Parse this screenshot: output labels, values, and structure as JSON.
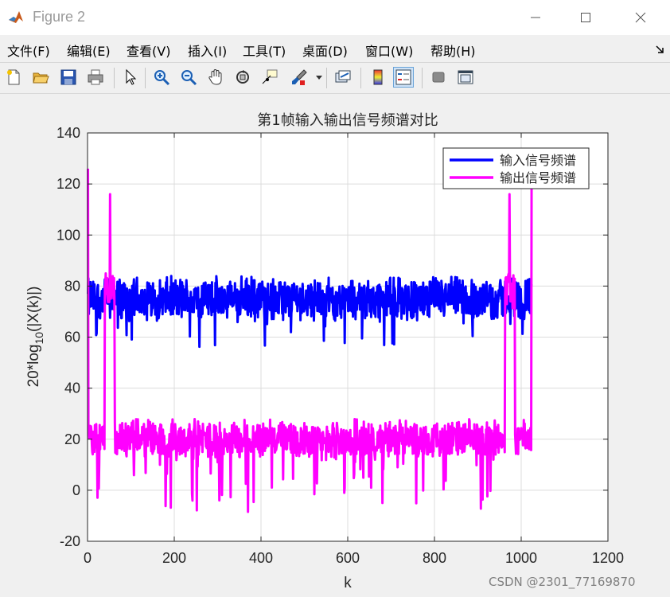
{
  "window": {
    "title": "Figure 2",
    "controls": {
      "minimize": "minimize",
      "maximize": "maximize",
      "close": "close"
    }
  },
  "menu": {
    "items": [
      "文件(F)",
      "编辑(E)",
      "查看(V)",
      "插入(I)",
      "工具(T)",
      "桌面(D)",
      "窗口(W)",
      "帮助(H)"
    ],
    "overflow_icon": "dock-arrow-icon"
  },
  "toolbar": {
    "buttons": [
      {
        "icon": "new-figure-icon"
      },
      {
        "icon": "open-file-icon"
      },
      {
        "icon": "save-icon"
      },
      {
        "icon": "print-icon"
      },
      {
        "icon": "pointer-icon"
      },
      {
        "icon": "zoom-in-icon"
      },
      {
        "icon": "zoom-out-icon"
      },
      {
        "icon": "pan-icon"
      },
      {
        "icon": "rotate-3d-icon"
      },
      {
        "icon": "data-cursor-icon"
      },
      {
        "icon": "brush-icon"
      },
      {
        "icon": "link-plot-icon"
      },
      {
        "icon": "colorbar-icon"
      },
      {
        "icon": "legend-icon",
        "active": true
      },
      {
        "icon": "hide-tools-icon"
      },
      {
        "icon": "show-tools-icon"
      }
    ]
  },
  "chart_data": {
    "type": "line",
    "title": "第1帧输入输出信号频谱对比",
    "xlabel": "k",
    "ylabel_main": "20*log",
    "ylabel_sub": "10",
    "ylabel_tail": "(|X(k)|)",
    "xlim": [
      0,
      1200
    ],
    "ylim": [
      -20,
      140
    ],
    "xticks": [
      "0",
      "200",
      "400",
      "600",
      "800",
      "1000",
      "1200"
    ],
    "yticks": [
      "-20",
      "0",
      "20",
      "40",
      "60",
      "80",
      "100",
      "120",
      "140"
    ],
    "grid": true,
    "legend_position": "top-right",
    "n_points": 1024,
    "series": [
      {
        "name": "输入信号频谱",
        "color": "#0000ff",
        "baseline": 75,
        "spread": 8,
        "range": [
          56,
          87
        ]
      },
      {
        "name": "输出信号频谱",
        "color": "#ff00ff",
        "baseline": 20,
        "spread": 7,
        "range": [
          -9,
          30
        ],
        "peaks": [
          {
            "x": 1,
            "y": 126
          },
          {
            "x": 52,
            "y": 116
          },
          {
            "x": 973,
            "y": 116
          },
          {
            "x": 1024,
            "y": 126
          }
        ],
        "passband": [
          {
            "from": 40,
            "to": 62,
            "level": 78
          },
          {
            "from": 963,
            "to": 985,
            "level": 78
          }
        ]
      }
    ]
  },
  "watermark": "CSDN @2301_77169870"
}
